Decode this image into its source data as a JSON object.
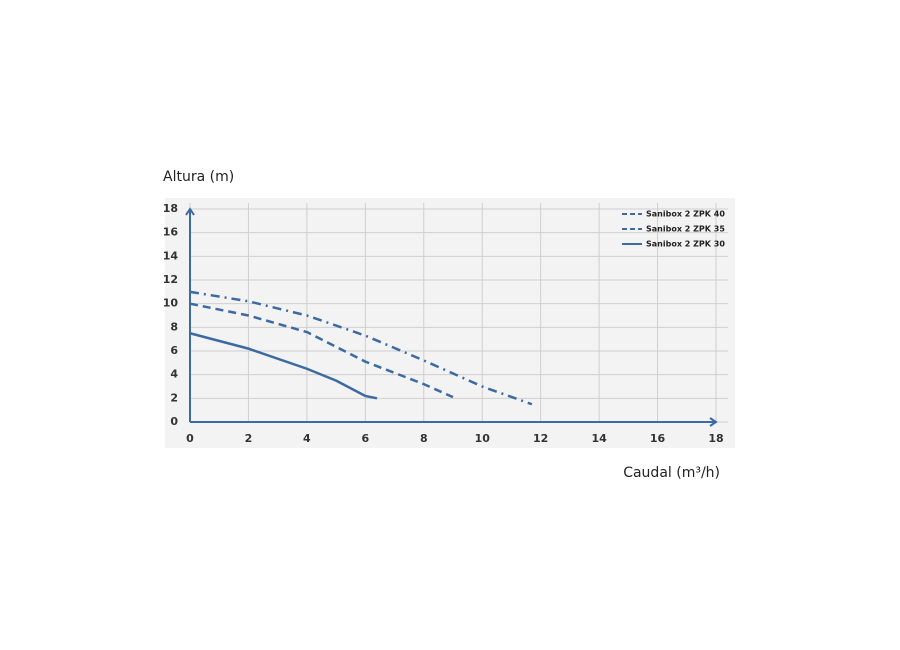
{
  "chart_data": {
    "type": "line",
    "ylabel": "Altura (m)",
    "xlabel": "Caudal (m³/h)",
    "xlim": [
      0,
      18
    ],
    "xticks": [
      0,
      2,
      4,
      6,
      8,
      10,
      12,
      14,
      16,
      18
    ],
    "ylim": [
      0,
      18
    ],
    "yticks": [
      0,
      2,
      4,
      6,
      8,
      10,
      12,
      14,
      16,
      18
    ],
    "grid": true,
    "legend": "upper right",
    "series": [
      {
        "name": "Sanibox 2 ZPK 40",
        "color": "#3c6aa3",
        "dash": "dashdot",
        "x": [
          0,
          2,
          4,
          6,
          8,
          10,
          11.7
        ],
        "values": [
          11,
          10.2,
          9,
          7.3,
          5.2,
          3,
          1.5
        ]
      },
      {
        "name": "Sanibox 2 ZPK 35",
        "color": "#3c6aa3",
        "dash": "dashed",
        "x": [
          0,
          2,
          4,
          6,
          8,
          9
        ],
        "values": [
          10,
          9,
          7.6,
          5.1,
          3.2,
          2.1
        ]
      },
      {
        "name": "Sanibox 2 ZPK 30",
        "color": "#3c6aa3",
        "dash": "solid",
        "x": [
          0,
          2,
          4,
          5,
          6,
          6.4
        ],
        "values": [
          7.5,
          6.2,
          4.5,
          3.5,
          2.2,
          2
        ]
      }
    ]
  }
}
